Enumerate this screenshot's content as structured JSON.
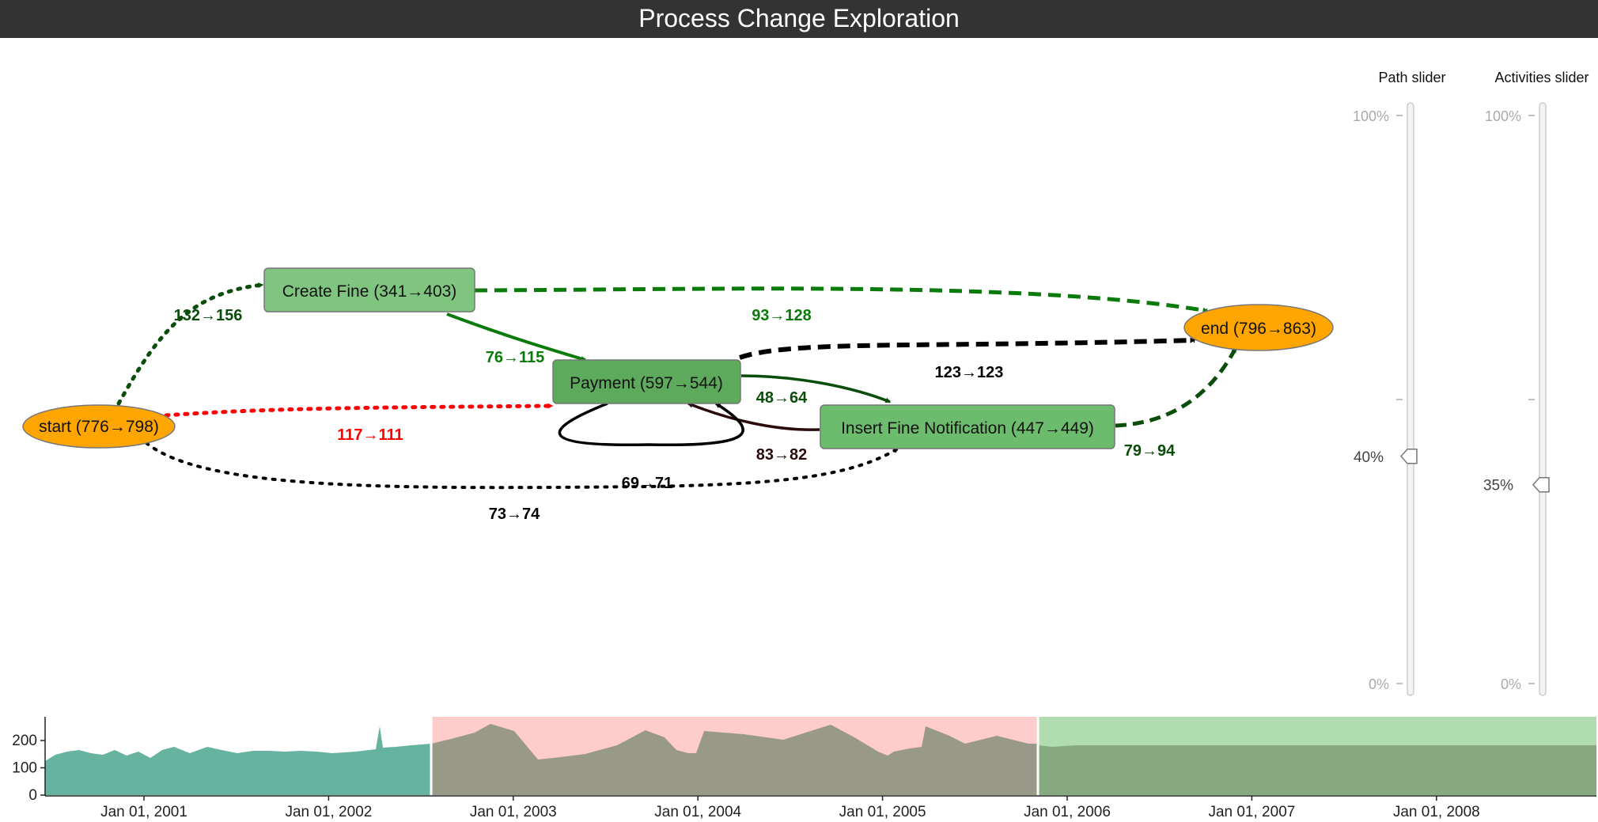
{
  "header": {
    "title": "Process Change Exploration"
  },
  "graph": {
    "nodes": {
      "start": "start (776→798)",
      "create_fine": "Create Fine (341→403)",
      "payment": "Payment (597→544)",
      "insert_fine_notification": "Insert Fine Notification (447→449)",
      "end": "end (796→863)"
    },
    "edges": {
      "start_create_fine": "132→156",
      "start_payment": "117→111",
      "start_insert_notification": "73→74",
      "create_fine_end": "93→128",
      "create_fine_payment": "76→115",
      "payment_end": "123→123",
      "payment_insert_notification": "48→64",
      "insert_notification_payment": "83→82",
      "insert_notification_end": "79→94",
      "payment_self_loop": "69→71"
    },
    "colors": {
      "increase": "#008000",
      "increase_dark": "#0b4d0b",
      "decrease": "#ff0000",
      "neutral": "#000000",
      "node_activity": "#6dbb6d",
      "node_terminal": "#ffa500"
    }
  },
  "sliders": {
    "path": {
      "title": "Path slider",
      "top_label": "100%",
      "bottom_label": "0%",
      "value_label": "40%",
      "value": 0.4
    },
    "activities": {
      "title": "Activities slider",
      "top_label": "100%",
      "bottom_label": "0%",
      "value_label": "35%",
      "value": 0.35
    }
  },
  "timeline": {
    "y_ticks": [
      "200",
      "100",
      "0"
    ],
    "x_ticks": [
      "Jan 01, 2001",
      "Jan 01, 2002",
      "Jan 01, 2003",
      "Jan 01, 2004",
      "Jan 01, 2005",
      "Jan 01, 2006",
      "Jan 01, 2007",
      "Jan 01, 2008"
    ],
    "ylim": [
      0,
      300
    ],
    "colors": {
      "area": "#66b3a0",
      "period_before": "#ffcccc",
      "period_after": "#b0dcb0",
      "area_before": "#999988",
      "area_after": "#88aa80"
    }
  }
}
